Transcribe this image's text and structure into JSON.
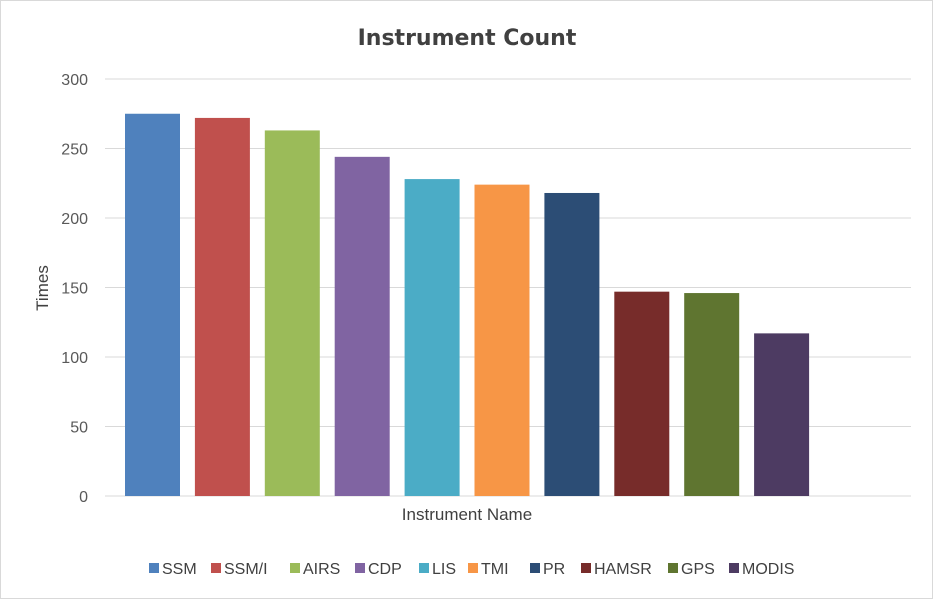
{
  "chart_data": {
    "type": "bar",
    "title": "Instrument Count",
    "xlabel": "Instrument Name",
    "ylabel": "Times",
    "ylim": [
      0,
      300
    ],
    "ytick_step": 50,
    "categories": [
      "SSM",
      "SSM/I",
      "AIRS",
      "CDP",
      "LIS",
      "TMI",
      "PR",
      "HAMSR",
      "GPS",
      "MODIS"
    ],
    "values": [
      275,
      272,
      263,
      244,
      228,
      224,
      218,
      147,
      146,
      117
    ],
    "colors": [
      "#4f81bd",
      "#c0504d",
      "#9bbb59",
      "#8064a2",
      "#4bacc6",
      "#f79646",
      "#2c4d75",
      "#772c2a",
      "#5f7530",
      "#4d3b62"
    ],
    "grid": true,
    "legend_position": "bottom"
  }
}
